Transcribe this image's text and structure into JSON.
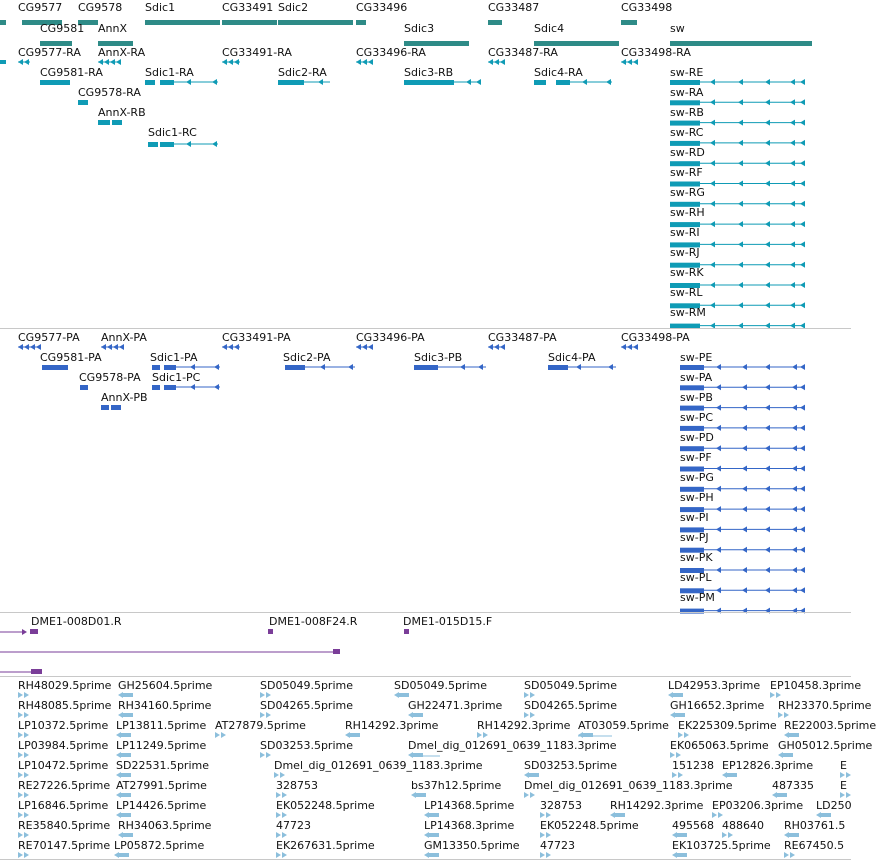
{
  "tracks": {
    "genes": [
      {
        "label": "CG9577"
      },
      {
        "label": "CG9578"
      },
      {
        "label": "Sdic1"
      },
      {
        "label": "CG33491"
      },
      {
        "label": "Sdic2"
      },
      {
        "label": "CG33496"
      },
      {
        "label": "CG33487"
      },
      {
        "label": "CG33498"
      },
      {
        "label": "CG9581"
      },
      {
        "label": "AnnX"
      },
      {
        "label": "Sdic3"
      },
      {
        "label": "Sdic4"
      },
      {
        "label": "sw"
      }
    ],
    "transcripts": [
      {
        "label": "CG9577-RA"
      },
      {
        "label": "AnnX-RA"
      },
      {
        "label": "CG33491-RA"
      },
      {
        "label": "CG33496-RA"
      },
      {
        "label": "CG33487-RA"
      },
      {
        "label": "CG33498-RA"
      },
      {
        "label": "CG9581-RA"
      },
      {
        "label": "Sdic1-RA"
      },
      {
        "label": "Sdic2-RA"
      },
      {
        "label": "Sdic3-RB"
      },
      {
        "label": "Sdic4-RA"
      },
      {
        "label": "sw-RE"
      },
      {
        "label": "CG9578-RA"
      },
      {
        "label": "sw-RA"
      },
      {
        "label": "AnnX-RB"
      },
      {
        "label": "sw-RB"
      },
      {
        "label": "Sdic1-RC"
      },
      {
        "label": "sw-RC"
      },
      {
        "label": "sw-RD"
      },
      {
        "label": "sw-RF"
      },
      {
        "label": "sw-RG"
      },
      {
        "label": "sw-RH"
      },
      {
        "label": "sw-RI"
      },
      {
        "label": "sw-RJ"
      },
      {
        "label": "sw-RK"
      },
      {
        "label": "sw-RL"
      },
      {
        "label": "sw-RM"
      }
    ],
    "proteins": [
      {
        "label": "CG9577-PA"
      },
      {
        "label": "AnnX-PA"
      },
      {
        "label": "CG33491-PA"
      },
      {
        "label": "CG33496-PA"
      },
      {
        "label": "CG33487-PA"
      },
      {
        "label": "CG33498-PA"
      },
      {
        "label": "CG9581-PA"
      },
      {
        "label": "Sdic1-PA"
      },
      {
        "label": "Sdic2-PA"
      },
      {
        "label": "Sdic3-PB"
      },
      {
        "label": "Sdic4-PA"
      },
      {
        "label": "sw-PE"
      },
      {
        "label": "CG9578-PA"
      },
      {
        "label": "Sdic1-PC"
      },
      {
        "label": "sw-PA"
      },
      {
        "label": "AnnX-PB"
      },
      {
        "label": "sw-PB"
      },
      {
        "label": "sw-PC"
      },
      {
        "label": "sw-PD"
      },
      {
        "label": "sw-PF"
      },
      {
        "label": "sw-PG"
      },
      {
        "label": "sw-PH"
      },
      {
        "label": "sw-PI"
      },
      {
        "label": "sw-PJ"
      },
      {
        "label": "sw-PK"
      },
      {
        "label": "sw-PL"
      },
      {
        "label": "sw-PM"
      }
    ],
    "clones": [
      {
        "label": "DME1-008D01.R"
      },
      {
        "label": "DME1-008F24.R"
      },
      {
        "label": "DME1-015D15.F"
      }
    ],
    "ests": [
      {
        "label": "RH48029.5prime"
      },
      {
        "label": "GH25604.5prime"
      },
      {
        "label": "SD05049.5prime"
      },
      {
        "label": "SD05049.5prime"
      },
      {
        "label": "SD05049.5prime"
      },
      {
        "label": "LD42953.3prime"
      },
      {
        "label": "EP10458.3prime"
      },
      {
        "label": "RH48085.5prime"
      },
      {
        "label": "RH34160.5prime"
      },
      {
        "label": "SD04265.5prime"
      },
      {
        "label": "GH22471.3prime"
      },
      {
        "label": "SD04265.5prime"
      },
      {
        "label": "GH16652.3prime"
      },
      {
        "label": "RH23370.5prime"
      },
      {
        "label": "LP10372.5prime"
      },
      {
        "label": "LP13811.5prime"
      },
      {
        "label": "AT27879.5prime"
      },
      {
        "label": "RH14292.3prime"
      },
      {
        "label": "RH14292.3prime"
      },
      {
        "label": "AT03059.5prime"
      },
      {
        "label": "EK225309.5prime"
      },
      {
        "label": "RE22003.5prime"
      },
      {
        "label": "LP03984.5prime"
      },
      {
        "label": "LP11249.5prime"
      },
      {
        "label": "SD03253.5prime"
      },
      {
        "label": "Dmel_dig_012691_0639_1183.3prime"
      },
      {
        "label": "EK065063.5prime"
      },
      {
        "label": "GH05012.5prime"
      },
      {
        "label": "LP10472.5prime"
      },
      {
        "label": "SD22531.5prime"
      },
      {
        "label": "Dmel_dig_012691_0639_1183.3prime"
      },
      {
        "label": "SD03253.5prime"
      },
      {
        "label": "151238"
      },
      {
        "label": "EP12826.3prime"
      },
      {
        "label": "E"
      },
      {
        "label": "RE27226.5prime"
      },
      {
        "label": "AT27991.5prime"
      },
      {
        "label": "328753"
      },
      {
        "label": "bs37h12.5prime"
      },
      {
        "label": "Dmel_dig_012691_0639_1183.3prime"
      },
      {
        "label": "487335"
      },
      {
        "label": "E"
      },
      {
        "label": "LP16846.5prime"
      },
      {
        "label": "LP14426.5prime"
      },
      {
        "label": "EK052248.5prime"
      },
      {
        "label": "LP14368.5prime"
      },
      {
        "label": "328753"
      },
      {
        "label": "RH14292.3prime"
      },
      {
        "label": "EP03206.3prime"
      },
      {
        "label": "LD250"
      },
      {
        "label": "RE35840.5prime"
      },
      {
        "label": "RH34063.5prime"
      },
      {
        "label": "47723"
      },
      {
        "label": "LP14368.3prime"
      },
      {
        "label": "EK052248.5prime"
      },
      {
        "label": "495568"
      },
      {
        "label": "488640"
      },
      {
        "label": "RH03761.5"
      },
      {
        "label": "RE70147.5prime"
      },
      {
        "label": "LP05872.5prime"
      },
      {
        "label": "EK267631.5prime"
      },
      {
        "label": "GM13350.5prime"
      },
      {
        "label": "47723"
      },
      {
        "label": "EK103725.5prime"
      },
      {
        "label": "RE67450.5"
      }
    ]
  },
  "colors": {
    "gene": "#2e8b87",
    "transcript": "#0f9bb5",
    "protein": "#3466c7",
    "clone": "#7a3d98",
    "est": "#8cbfdc"
  }
}
